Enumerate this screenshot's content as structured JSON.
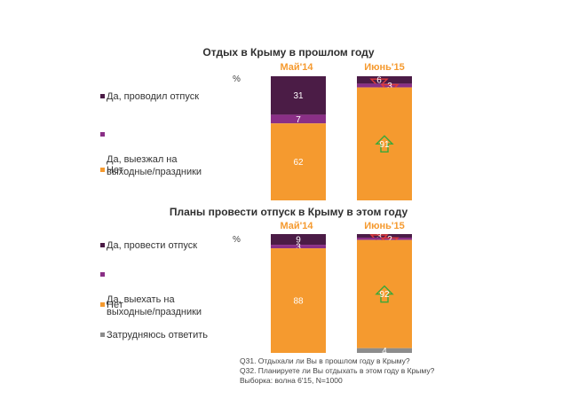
{
  "chart_data": [
    {
      "type": "stacked_bar",
      "title": "Отдых в Крыму в прошлом году",
      "unit": "%",
      "categories": [
        "Май'14",
        "Июнь'15"
      ],
      "series": [
        {
          "name": "Да, проводил отпуск",
          "color": "#4b1c46",
          "values": [
            31,
            6
          ]
        },
        {
          "name": "Да, выезжал на выходные/праздники",
          "color": "#8a2f86",
          "values": [
            7,
            3
          ]
        },
        {
          "name": "Нет",
          "color": "#f59a2f",
          "values": [
            62,
            91
          ]
        }
      ],
      "annotations": [
        {
          "category": "Июнь'15",
          "series": "Да, проводил отпуск",
          "direction": "down"
        },
        {
          "category": "Июнь'15",
          "series": "Да, выезжал на выходные/праздники",
          "direction": "down"
        },
        {
          "category": "Июнь'15",
          "series": "Нет",
          "direction": "up"
        }
      ]
    },
    {
      "type": "stacked_bar",
      "title": "Планы провести отпуск в Крыму в этом году",
      "unit": "%",
      "categories": [
        "Май'14",
        "Июнь'15"
      ],
      "series": [
        {
          "name": "Да, провести отпуск",
          "color": "#4b1c46",
          "values": [
            9,
            3
          ]
        },
        {
          "name": "Да, выехать на выходные/праздники",
          "color": "#8a2f86",
          "values": [
            3,
            2
          ]
        },
        {
          "name": "Нет",
          "color": "#f59a2f",
          "values": [
            88,
            92
          ]
        },
        {
          "name": "Затрудняюсь ответить",
          "color": "#8c8c8c",
          "values": [
            0,
            4
          ]
        }
      ],
      "annotations": [
        {
          "category": "Июнь'15",
          "series": "Да, провести отпуск",
          "direction": "down"
        },
        {
          "category": "Июнь'15",
          "series": "Да, выехать на выходные/праздники",
          "direction": "down"
        },
        {
          "category": "Июнь'15",
          "series": "Нет",
          "direction": "up"
        }
      ]
    }
  ],
  "legends": {
    "chart1": [
      "Да, проводил отпуск",
      "Да, выезжал на\nвыходные/праздники",
      "Нет"
    ],
    "chart2": [
      "Да, провести отпуск",
      "Да, выехать на\nвыходные/праздники",
      "Нет",
      "Затрудняюсь ответить"
    ]
  },
  "notes": [
    "Q31. Отдыхали ли Вы в прошлом году в Крыму?",
    "Q32. Планируете ли Вы отдыхать в этом году в Крыму?",
    "Выборка: волна 6'15, N=1000"
  ]
}
